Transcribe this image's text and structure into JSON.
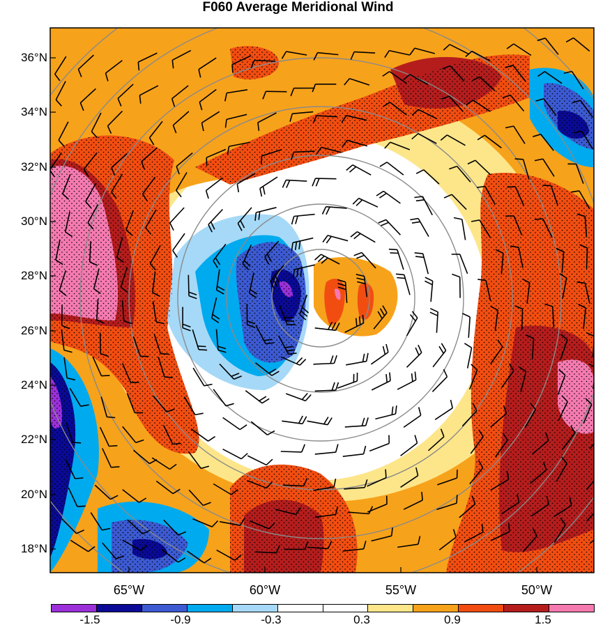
{
  "title": "F060 Average Meridional Wind",
  "lat_labels": [
    "36°N",
    "34°N",
    "32°N",
    "30°N",
    "28°N",
    "26°N",
    "24°N",
    "22°N",
    "20°N",
    "18°N"
  ],
  "lon_labels": [
    "65°W",
    "60°W",
    "55°W",
    "50°W"
  ],
  "colorbar": {
    "colors": [
      "#9b30d9",
      "#0a0a96",
      "#3c5ad2",
      "#00aaee",
      "#a6d9f7",
      "#ffffff",
      "#ffffff",
      "#fde68a",
      "#f7a21b",
      "#f24d11",
      "#b51d1d",
      "#f57ab0"
    ],
    "labels": [
      "-1.5",
      "-0.9",
      "-0.3",
      "0.3",
      "0.9",
      "1.5"
    ]
  },
  "map": {
    "lon_range": [
      -68,
      -47.6
    ],
    "lat_range": [
      17.2,
      37.2
    ],
    "storm_center": {
      "lon": -57.8,
      "lat": 27.3
    },
    "range_rings": 7
  }
}
